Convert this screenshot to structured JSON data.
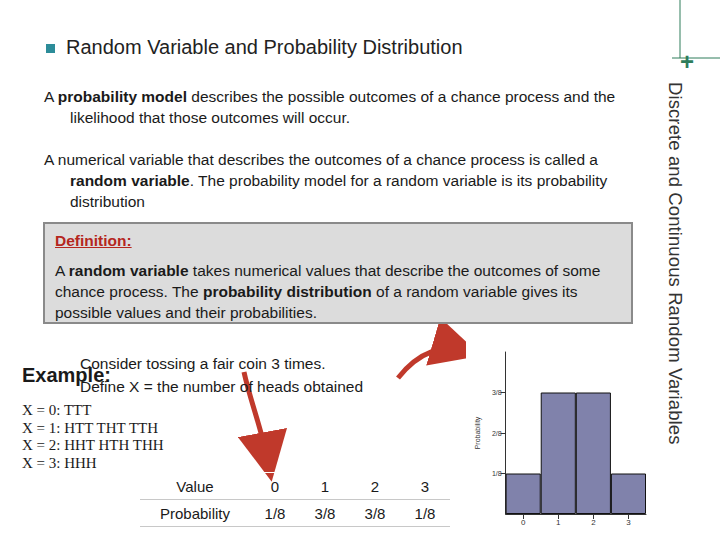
{
  "header": {
    "title": "Random Variable and Probability Distribution",
    "side_title": "Discrete and Continuous Random Variables",
    "corner_mark": "+"
  },
  "paragraphs": [
    [
      {
        "text": "A "
      },
      {
        "text": "probability model",
        "bold": true
      },
      {
        "text": " describes the possible outcomes of a chance process and the likelihood that those outcomes will occur."
      }
    ],
    [
      {
        "text": "A numerical variable that describes the outcomes of a chance process is called a "
      },
      {
        "text": "random variable",
        "bold": true
      },
      {
        "text": ".  The probability model for a random variable is its probability distribution"
      }
    ]
  ],
  "definition": {
    "heading": "Definition:",
    "body": [
      {
        "text": "A "
      },
      {
        "text": "random variable",
        "bold": true
      },
      {
        "text": " takes numerical values that describe the outcomes of some chance process. The "
      },
      {
        "text": "probability distribution",
        "bold": true
      },
      {
        "text": " of a random variable gives its possible values and their probabilities."
      }
    ]
  },
  "example": {
    "label": "Example:",
    "lines": [
      "Consider tossing a fair coin 3 times.",
      "Define X = the number of heads obtained"
    ]
  },
  "outcomes": [
    "X = 0: TTT",
    "X = 1: HTT THT TTH",
    "X = 2: HHT HTH THH",
    "X = 3: HHH"
  ],
  "table": {
    "rows": [
      [
        "Value",
        "0",
        "1",
        "2",
        "3"
      ],
      [
        "Probability",
        "1/8",
        "3/8",
        "3/8",
        "1/8"
      ]
    ]
  },
  "chart_data": {
    "type": "bar",
    "categories": [
      "0",
      "1",
      "2",
      "3"
    ],
    "values": [
      0.125,
      0.375,
      0.375,
      0.125
    ],
    "color": "#8082ab",
    "y_label": "Probability",
    "ylim": [
      0,
      0.5
    ],
    "yticks": [
      {
        "value": 0.125,
        "label": "1/8"
      },
      {
        "value": 0.25,
        "label": "2/8"
      },
      {
        "value": 0.375,
        "label": "3/8"
      }
    ],
    "grid": false
  }
}
